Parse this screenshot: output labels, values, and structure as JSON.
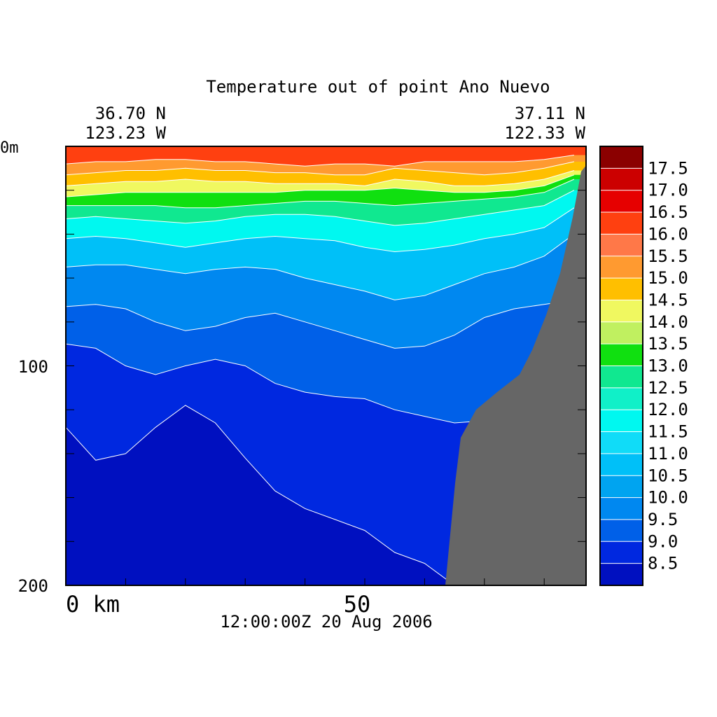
{
  "chart_data": {
    "type": "heatmap",
    "title": "Temperature out of point Ano Nuevo",
    "start_point": {
      "lat": "36.70 N",
      "lon": "123.23 W"
    },
    "end_point": {
      "lat": "37.11 N",
      "lon": "122.33 W"
    },
    "timestamp": "12:00:00Z  20 Aug 2006",
    "x_axis": {
      "unit": "km",
      "range": [
        0,
        87
      ],
      "tick_labels": [
        "0 km",
        "50"
      ],
      "tick_values": [
        0,
        50
      ]
    },
    "y_axis": {
      "unit": "m",
      "range": [
        0,
        200
      ],
      "inverted": true,
      "tick_labels": [
        "0m",
        "100",
        "200"
      ],
      "tick_values": [
        0,
        100,
        200
      ]
    },
    "colorbar": {
      "levels": [
        8.5,
        9.0,
        9.5,
        10.0,
        10.5,
        11.0,
        11.5,
        12.0,
        12.5,
        13.0,
        13.5,
        14.0,
        14.5,
        15.0,
        15.5,
        16.0,
        16.5,
        17.0,
        17.5
      ],
      "labels": [
        "17.5",
        "17.0",
        "16.5",
        "16.0",
        "15.5",
        "15.0",
        "14.5",
        "14.0",
        "13.5",
        "13.0",
        "12.5",
        "12.0",
        "11.5",
        "11.0",
        "10.5",
        "10.0",
        "9.5",
        "9.0",
        "8.5"
      ],
      "colors": [
        "#8b0000",
        "#cc0000",
        "#e60000",
        "#ff4010",
        "#ff7848",
        "#ff9a30",
        "#ffbf00",
        "#f0f860",
        "#c0f060",
        "#10e010",
        "#10e890",
        "#10f0c8",
        "#00f8f0",
        "#10dcf8",
        "#00c0f8",
        "#00a4f0",
        "#0088f0",
        "#0060e8",
        "#0028e0",
        "#0010c0"
      ]
    },
    "section_depth_profile": {
      "description_units": "depth of temperature isotherm boundaries (m) along transect distance (km)",
      "x": [
        0,
        5,
        10,
        15,
        20,
        25,
        30,
        35,
        40,
        45,
        50,
        55,
        60,
        65,
        70,
        75,
        80,
        85
      ],
      "isotherms": [
        {
          "value": 16.0,
          "depth": [
            8,
            7,
            7,
            6,
            6,
            7,
            7,
            8,
            9,
            8,
            8,
            9,
            7,
            7,
            7,
            7,
            6,
            4
          ]
        },
        {
          "value": 15.0,
          "depth": [
            13,
            12,
            11,
            11,
            10,
            11,
            11,
            12,
            12,
            13,
            13,
            10,
            11,
            12,
            13,
            12,
            10,
            7
          ]
        },
        {
          "value": 14.5,
          "depth": [
            18,
            17,
            16,
            16,
            15,
            16,
            16,
            17,
            17,
            17,
            18,
            15,
            16,
            18,
            18,
            17,
            15,
            11
          ]
        },
        {
          "value": 14.0,
          "depth": [
            23,
            22,
            21,
            21,
            21,
            21,
            21,
            21,
            20,
            20,
            20,
            19,
            20,
            21,
            21,
            20,
            18,
            13
          ]
        },
        {
          "value": 13.0,
          "depth": [
            27,
            27,
            27,
            27,
            28,
            28,
            27,
            26,
            25,
            25,
            26,
            27,
            26,
            25,
            24,
            23,
            21,
            15
          ]
        },
        {
          "value": 12.5,
          "depth": [
            33,
            32,
            33,
            34,
            35,
            34,
            32,
            31,
            31,
            32,
            34,
            36,
            35,
            33,
            31,
            29,
            27,
            20
          ]
        },
        {
          "value": 11.5,
          "depth": [
            42,
            41,
            42,
            44,
            46,
            44,
            42,
            41,
            42,
            43,
            46,
            48,
            47,
            45,
            42,
            40,
            37,
            28
          ]
        },
        {
          "value": 10.5,
          "depth": [
            55,
            54,
            54,
            56,
            58,
            56,
            55,
            56,
            60,
            63,
            66,
            70,
            68,
            63,
            58,
            55,
            50,
            40
          ]
        },
        {
          "value": 9.5,
          "depth": [
            73,
            72,
            74,
            80,
            84,
            82,
            78,
            76,
            80,
            84,
            88,
            92,
            91,
            86,
            78,
            74,
            72,
            70
          ]
        },
        {
          "value": 9.0,
          "depth": [
            90,
            92,
            100,
            104,
            100,
            97,
            100,
            108,
            112,
            114,
            115,
            120,
            123,
            126,
            125,
            120,
            110,
            100
          ]
        },
        {
          "value": 8.5,
          "depth": [
            128,
            143,
            140,
            128,
            118,
            126,
            142,
            157,
            165,
            170,
            175,
            185,
            190,
            200,
            200,
            200,
            200,
            200
          ]
        }
      ],
      "bottom_topography": "seafloor rises from 200 m near 61 km to the surface at 87 km"
    }
  }
}
